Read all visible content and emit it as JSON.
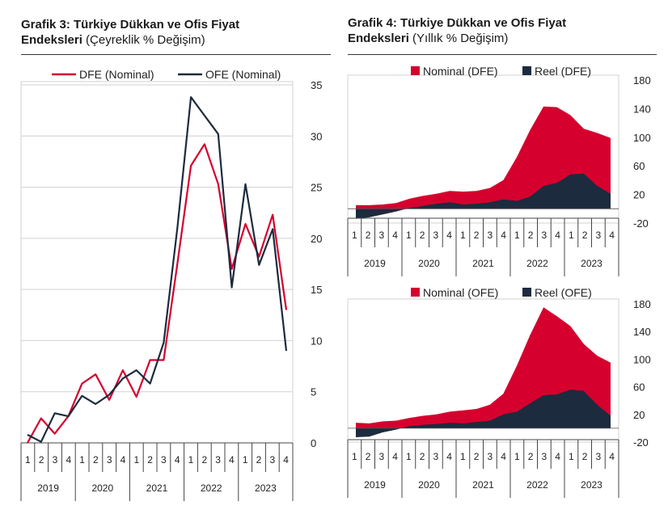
{
  "charts": [
    {
      "title_bold": "Grafik 3: Türkiye Dükkan ve Ofis Fiyat",
      "title_bold_line2": "Endeksleri",
      "title_sub": "(Çeyreklik % Değişim)"
    },
    {
      "title_bold": "Grafik 4: Türkiye Dükkan ve Ofis Fiyat",
      "title_bold_line2": "Endeksleri",
      "title_sub": "(Yıllık % Değişim)"
    }
  ],
  "colors": {
    "red": "#D6002E",
    "navy": "#1C2B3E",
    "grid": "#D0D0D0",
    "axis": "#444444"
  },
  "chart_data": [
    {
      "type": "line",
      "quarters": [
        "1",
        "2",
        "3",
        "4",
        "1",
        "2",
        "3",
        "4",
        "1",
        "2",
        "3",
        "4",
        "1",
        "2",
        "3",
        "4",
        "1",
        "2",
        "3",
        "4"
      ],
      "years": [
        "2019",
        "2020",
        "2021",
        "2022",
        "2023"
      ],
      "ylim": [
        0,
        35
      ],
      "yticks": [
        0,
        5,
        10,
        15,
        20,
        25,
        30,
        35
      ],
      "grid": true,
      "legend": "top",
      "series": [
        {
          "name": "DFE (Nominal)",
          "color": "#D6002E",
          "values": [
            0,
            2.4,
            0.9,
            2.6,
            5.8,
            6.7,
            4.2,
            7.1,
            4.5,
            8.1,
            8.1,
            17.5,
            27.1,
            29.2,
            25.3,
            17.0,
            21.4,
            18.2,
            22.3,
            13.0
          ]
        },
        {
          "name": "OFE (Nominal)",
          "color": "#1C2B3E",
          "values": [
            0.8,
            0.1,
            2.9,
            2.6,
            4.6,
            3.8,
            4.7,
            6.3,
            7.1,
            5.8,
            9.8,
            21.0,
            33.8,
            32.0,
            30.2,
            15.2,
            25.3,
            17.4,
            20.9,
            9.0
          ]
        }
      ]
    },
    {
      "type": "area",
      "quarters": [
        "1",
        "2",
        "3",
        "4",
        "1",
        "2",
        "3",
        "4",
        "1",
        "2",
        "3",
        "4",
        "1",
        "2",
        "3",
        "4",
        "1",
        "2",
        "3",
        "4"
      ],
      "years": [
        "2019",
        "2020",
        "2021",
        "2022",
        "2023"
      ],
      "ylim": [
        -20,
        180
      ],
      "yticks": [
        -20,
        20,
        60,
        100,
        140,
        180
      ],
      "legend": "top",
      "series": [
        {
          "name": "Nominal (DFE)",
          "color": "#D6002E",
          "values": [
            5,
            5,
            6,
            8,
            14,
            18,
            21,
            25,
            24,
            25,
            29,
            40,
            72,
            110,
            143,
            142,
            131,
            112,
            106,
            99
          ]
        },
        {
          "name": "Reel (DFE)",
          "color": "#1C2B3E",
          "values": [
            -14,
            -12,
            -8,
            -4,
            1,
            4,
            7,
            9,
            6,
            7,
            9,
            13,
            11,
            17,
            32,
            36,
            48,
            49,
            32,
            21
          ]
        }
      ]
    },
    {
      "type": "area",
      "quarters": [
        "1",
        "2",
        "3",
        "4",
        "1",
        "2",
        "3",
        "4",
        "1",
        "2",
        "3",
        "4",
        "1",
        "2",
        "3",
        "4",
        "1",
        "2",
        "3",
        "4"
      ],
      "years": [
        "2019",
        "2020",
        "2021",
        "2022",
        "2023"
      ],
      "ylim": [
        -20,
        180
      ],
      "yticks": [
        -20,
        20,
        60,
        100,
        140,
        180
      ],
      "legend": "top",
      "series": [
        {
          "name": "Nominal (OFE)",
          "color": "#D6002E",
          "values": [
            8,
            7,
            10,
            11,
            15,
            18,
            20,
            24,
            26,
            28,
            34,
            50,
            90,
            135,
            175,
            162,
            148,
            122,
            105,
            95
          ]
        },
        {
          "name": "Reel (OFE)",
          "color": "#1C2B3E",
          "values": [
            -13,
            -12,
            -6,
            -2,
            3,
            5,
            6,
            8,
            7,
            9,
            11,
            20,
            24,
            36,
            48,
            49,
            56,
            54,
            34,
            18
          ]
        }
      ]
    }
  ]
}
